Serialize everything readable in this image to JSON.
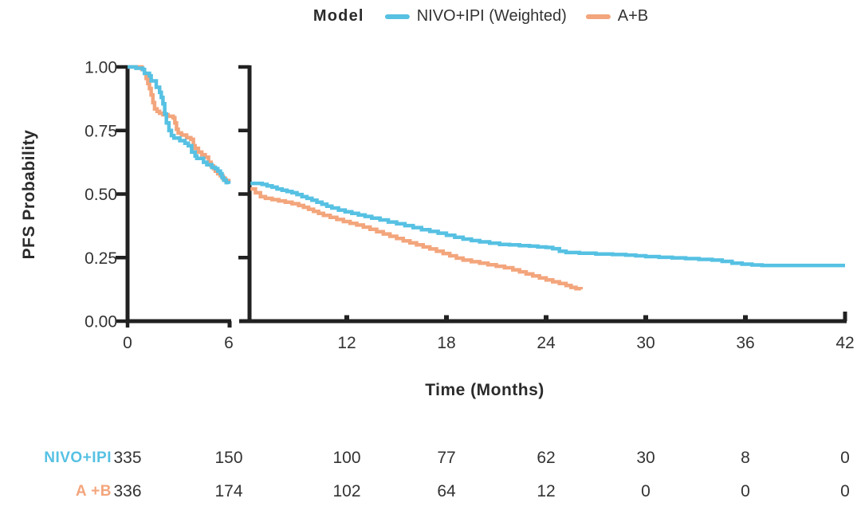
{
  "colors": {
    "nivo_blue": "#56C1E3",
    "ab_orange": "#F3A57C",
    "axis": "#212121",
    "text": "#333333"
  },
  "legend": {
    "title": "Model",
    "items": [
      {
        "label": "NIVO+IPI (Weighted)",
        "color": "#56C1E3"
      },
      {
        "label": "A+B",
        "color": "#F3A57C"
      }
    ]
  },
  "chart_data": {
    "type": "line",
    "subtype": "kaplan-meier-step",
    "title": "",
    "xlabel": "Time (Months)",
    "ylabel": "PFS Probability",
    "x_ticks": [
      0,
      6,
      12,
      18,
      24,
      30,
      36,
      42
    ],
    "y_ticks": [
      {
        "value": 1.0,
        "label": "1.00"
      },
      {
        "value": 0.75,
        "label": "0.75"
      },
      {
        "value": 0.5,
        "label": "0.50"
      },
      {
        "value": 0.25,
        "label": "0.25"
      },
      {
        "value": 0.0,
        "label": "0.00"
      }
    ],
    "ylim": [
      0,
      1
    ],
    "xlim": [
      0,
      42
    ],
    "grid": false,
    "legend_position": "top-center",
    "axis_break": {
      "after_month": 6,
      "note": "x-axis broken between month 6 and ~7; plot drawn as two panels"
    },
    "series": [
      {
        "name": "A+B",
        "color": "#F3A57C",
        "segments": [
          [
            [
              0,
              1.0
            ],
            [
              0.7,
              1.0
            ],
            [
              0.85,
              0.99
            ],
            [
              1.0,
              0.975
            ],
            [
              1.1,
              0.955
            ],
            [
              1.2,
              0.935
            ],
            [
              1.3,
              0.915
            ],
            [
              1.4,
              0.89
            ],
            [
              1.5,
              0.86
            ],
            [
              1.6,
              0.835
            ],
            [
              1.75,
              0.825
            ],
            [
              1.9,
              0.818
            ],
            [
              2.1,
              0.812
            ],
            [
              2.4,
              0.806
            ],
            [
              2.7,
              0.8
            ],
            [
              2.8,
              0.78
            ],
            [
              2.9,
              0.755
            ],
            [
              3.0,
              0.74
            ],
            [
              3.2,
              0.732
            ],
            [
              3.5,
              0.722
            ],
            [
              3.75,
              0.715
            ],
            [
              3.9,
              0.69
            ],
            [
              4.0,
              0.68
            ],
            [
              4.2,
              0.665
            ],
            [
              4.4,
              0.655
            ],
            [
              4.6,
              0.645
            ],
            [
              4.8,
              0.625
            ],
            [
              4.95,
              0.61
            ],
            [
              5.1,
              0.6
            ],
            [
              5.2,
              0.59
            ],
            [
              5.35,
              0.58
            ],
            [
              5.5,
              0.572
            ],
            [
              5.65,
              0.562
            ],
            [
              5.8,
              0.553
            ],
            [
              6.0,
              0.548
            ]
          ],
          [
            [
              6.2,
              0.52
            ],
            [
              6.5,
              0.505
            ],
            [
              6.8,
              0.49
            ],
            [
              7.1,
              0.483
            ],
            [
              7.5,
              0.478
            ],
            [
              7.9,
              0.473
            ],
            [
              8.3,
              0.468
            ],
            [
              8.7,
              0.462
            ],
            [
              9.1,
              0.455
            ],
            [
              9.4,
              0.448
            ],
            [
              9.7,
              0.44
            ],
            [
              10.0,
              0.432
            ],
            [
              10.3,
              0.424
            ],
            [
              10.6,
              0.416
            ],
            [
              11.0,
              0.408
            ],
            [
              11.4,
              0.4
            ],
            [
              11.8,
              0.392
            ],
            [
              12.2,
              0.385
            ],
            [
              12.6,
              0.378
            ],
            [
              13.0,
              0.37
            ],
            [
              13.4,
              0.361
            ],
            [
              13.8,
              0.352
            ],
            [
              14.2,
              0.343
            ],
            [
              14.6,
              0.334
            ],
            [
              15.0,
              0.325
            ],
            [
              15.4,
              0.316
            ],
            [
              15.8,
              0.308
            ],
            [
              16.2,
              0.3
            ],
            [
              16.6,
              0.292
            ],
            [
              17.0,
              0.284
            ],
            [
              17.4,
              0.275
            ],
            [
              17.8,
              0.266
            ],
            [
              18.2,
              0.257
            ],
            [
              18.6,
              0.248
            ],
            [
              19.0,
              0.24
            ],
            [
              19.5,
              0.234
            ],
            [
              20.0,
              0.228
            ],
            [
              20.5,
              0.222
            ],
            [
              21.0,
              0.216
            ],
            [
              21.5,
              0.21
            ],
            [
              22.0,
              0.202
            ],
            [
              22.4,
              0.194
            ],
            [
              22.8,
              0.186
            ],
            [
              23.2,
              0.178
            ],
            [
              23.6,
              0.17
            ],
            [
              24.0,
              0.162
            ],
            [
              24.4,
              0.155
            ],
            [
              24.8,
              0.148
            ],
            [
              25.2,
              0.14
            ],
            [
              25.5,
              0.133
            ],
            [
              25.8,
              0.128
            ],
            [
              26.1,
              0.125
            ]
          ]
        ]
      },
      {
        "name": "NIVO+IPI (Weighted)",
        "color": "#56C1E3",
        "segments": [
          [
            [
              0,
              1.0
            ],
            [
              0.45,
              1.0
            ],
            [
              0.5,
              0.995
            ],
            [
              0.9,
              0.99
            ],
            [
              1.0,
              0.975
            ],
            [
              1.3,
              0.965
            ],
            [
              1.4,
              0.945
            ],
            [
              1.7,
              0.92
            ],
            [
              1.9,
              0.9
            ],
            [
              2.0,
              0.88
            ],
            [
              2.1,
              0.855
            ],
            [
              2.2,
              0.815
            ],
            [
              2.3,
              0.78
            ],
            [
              2.45,
              0.75
            ],
            [
              2.6,
              0.73
            ],
            [
              2.75,
              0.72
            ],
            [
              3.1,
              0.71
            ],
            [
              3.4,
              0.7
            ],
            [
              3.6,
              0.69
            ],
            [
              3.8,
              0.665
            ],
            [
              4.0,
              0.65
            ],
            [
              4.1,
              0.64
            ],
            [
              4.5,
              0.625
            ],
            [
              4.7,
              0.615
            ],
            [
              5.0,
              0.605
            ],
            [
              5.2,
              0.6
            ],
            [
              5.35,
              0.59
            ],
            [
              5.5,
              0.58
            ],
            [
              5.6,
              0.565
            ],
            [
              5.7,
              0.555
            ],
            [
              5.85,
              0.545
            ],
            [
              6.0,
              0.54
            ]
          ],
          [
            [
              6.2,
              0.542
            ],
            [
              6.9,
              0.538
            ],
            [
              7.2,
              0.532
            ],
            [
              7.5,
              0.527
            ],
            [
              7.8,
              0.52
            ],
            [
              8.1,
              0.515
            ],
            [
              8.4,
              0.51
            ],
            [
              8.7,
              0.505
            ],
            [
              9.0,
              0.498
            ],
            [
              9.3,
              0.49
            ],
            [
              9.6,
              0.483
            ],
            [
              9.9,
              0.476
            ],
            [
              10.2,
              0.468
            ],
            [
              10.5,
              0.46
            ],
            [
              10.8,
              0.452
            ],
            [
              11.1,
              0.445
            ],
            [
              11.5,
              0.437
            ],
            [
              11.9,
              0.43
            ],
            [
              12.3,
              0.424
            ],
            [
              12.7,
              0.418
            ],
            [
              13.1,
              0.412
            ],
            [
              13.5,
              0.405
            ],
            [
              14.0,
              0.398
            ],
            [
              14.5,
              0.39
            ],
            [
              15.0,
              0.383
            ],
            [
              15.5,
              0.376
            ],
            [
              16.0,
              0.368
            ],
            [
              16.5,
              0.36
            ],
            [
              17.0,
              0.353
            ],
            [
              17.5,
              0.346
            ],
            [
              18.0,
              0.338
            ],
            [
              18.5,
              0.33
            ],
            [
              19.0,
              0.323
            ],
            [
              19.5,
              0.317
            ],
            [
              20.0,
              0.312
            ],
            [
              20.6,
              0.307
            ],
            [
              21.2,
              0.302
            ],
            [
              21.8,
              0.3
            ],
            [
              22.4,
              0.297
            ],
            [
              23.0,
              0.295
            ],
            [
              23.5,
              0.292
            ],
            [
              24.0,
              0.29
            ],
            [
              24.4,
              0.285
            ],
            [
              24.8,
              0.275
            ],
            [
              25.2,
              0.27
            ],
            [
              26.0,
              0.267
            ],
            [
              27.0,
              0.264
            ],
            [
              28.0,
              0.262
            ],
            [
              28.8,
              0.26
            ],
            [
              29.4,
              0.257
            ],
            [
              30.0,
              0.254
            ],
            [
              30.8,
              0.251
            ],
            [
              31.6,
              0.249
            ],
            [
              32.4,
              0.246
            ],
            [
              33.2,
              0.243
            ],
            [
              34.0,
              0.24
            ],
            [
              34.6,
              0.235
            ],
            [
              35.2,
              0.228
            ],
            [
              35.8,
              0.224
            ],
            [
              36.4,
              0.221
            ],
            [
              37.0,
              0.219
            ],
            [
              42.0,
              0.219
            ]
          ]
        ]
      }
    ]
  },
  "risk_table": {
    "time_points": [
      0,
      6,
      12,
      18,
      24,
      30,
      36,
      42
    ],
    "rows": [
      {
        "label": "NIVO+IPI",
        "color": "#56C1E3",
        "values": [
          "335",
          "150",
          "100",
          "77",
          "62",
          "30",
          "8",
          "0"
        ]
      },
      {
        "label": "A +B",
        "color": "#F3A57C",
        "values": [
          "336",
          "174",
          "102",
          "64",
          "12",
          "0",
          "0",
          "0"
        ]
      }
    ]
  }
}
